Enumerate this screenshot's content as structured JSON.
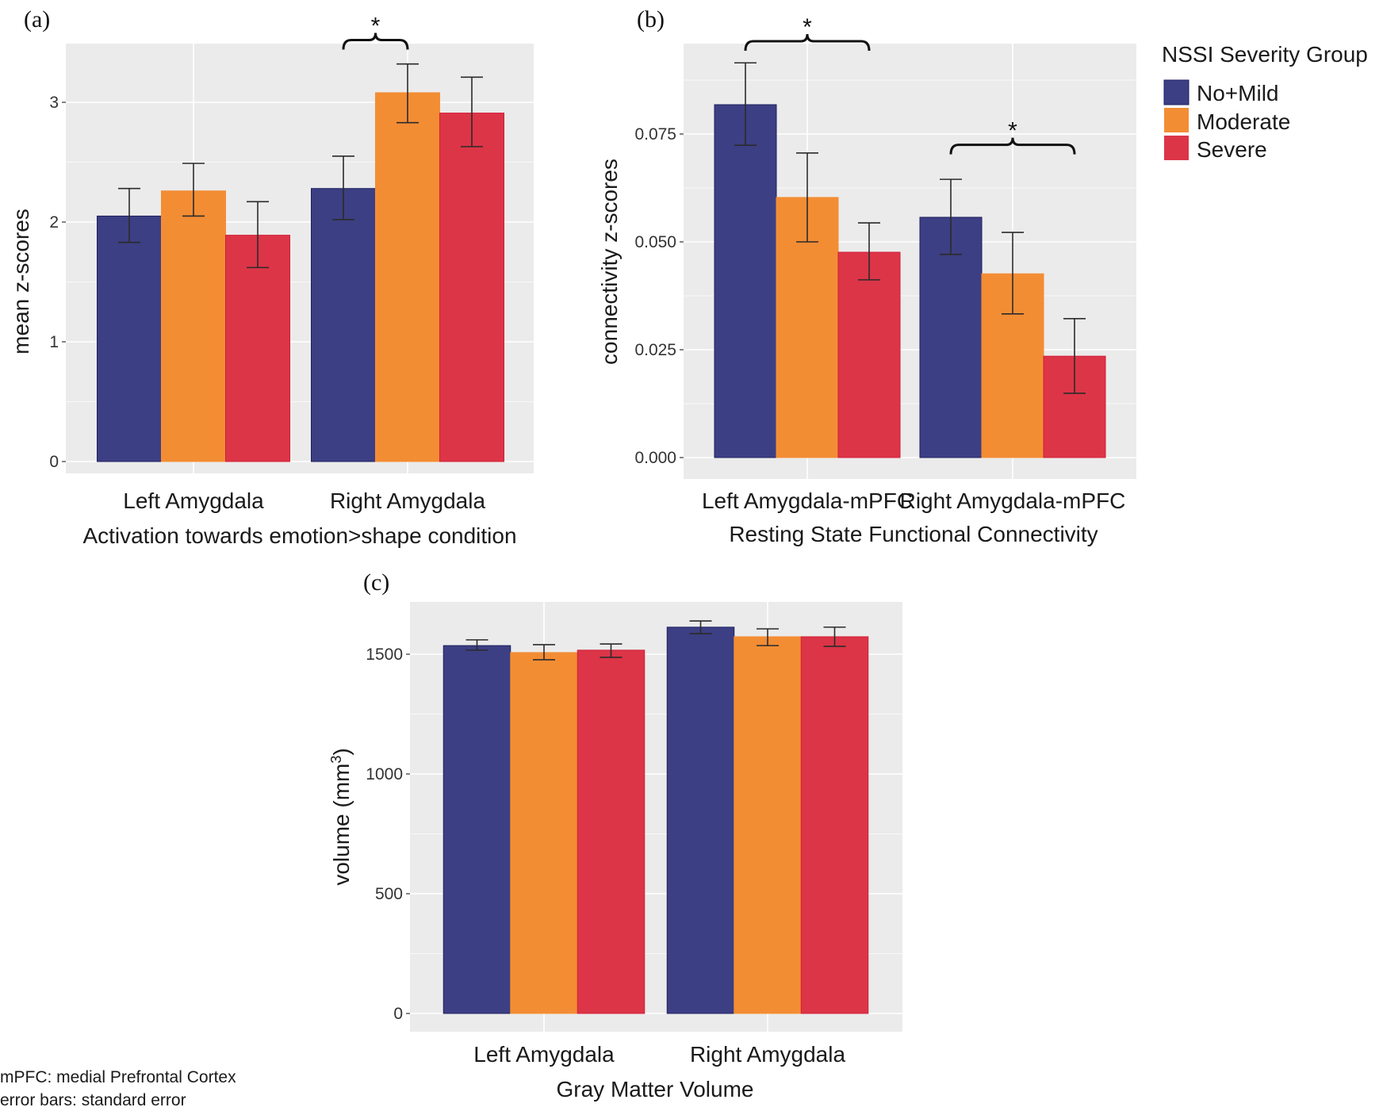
{
  "legend": {
    "title": "NSSI Severity Group",
    "items": [
      {
        "label": "No+Mild",
        "color": "#3C3F83"
      },
      {
        "label": "Moderate",
        "color": "#F38D34"
      },
      {
        "label": "Severe",
        "color": "#DC3547"
      }
    ]
  },
  "footnotes": [
    "mPFC: medial Prefrontal Cortex",
    "error bars: standard error"
  ],
  "chart_data": [
    {
      "panel": "(a)",
      "type": "bar",
      "title": "",
      "xlabel": "Activation towards emotion>shape condition",
      "ylabel": "mean z-scores",
      "categories": [
        "Left Amygdala",
        "Right Amygdala"
      ],
      "ylim": [
        -0.1,
        3.4
      ],
      "yticks": [
        0,
        1,
        2,
        3
      ],
      "ytick_labels": [
        "0",
        "1",
        "2",
        "3"
      ],
      "grid": true,
      "series": [
        {
          "name": "No+Mild",
          "values": [
            2.05,
            2.28
          ],
          "err_low": [
            1.83,
            2.02
          ],
          "err_high": [
            2.28,
            2.55
          ]
        },
        {
          "name": "Moderate",
          "values": [
            2.26,
            3.08
          ],
          "err_low": [
            2.05,
            2.83
          ],
          "err_high": [
            2.49,
            3.32
          ]
        },
        {
          "name": "Severe",
          "values": [
            1.89,
            2.91
          ],
          "err_low": [
            1.62,
            2.63
          ],
          "err_high": [
            2.17,
            3.21
          ]
        }
      ],
      "annotations": [
        {
          "text": "*",
          "category": 1,
          "from_series": 0,
          "to_series": 1,
          "y": 3.52
        }
      ]
    },
    {
      "panel": "(b)",
      "type": "bar",
      "title": "",
      "xlabel": "Resting State Functional Connectivity",
      "ylabel": "connectivity  z-scores",
      "categories": [
        "Left Amygdala-mPFC",
        "Right Amygdala-mPFC"
      ],
      "ylim": [
        -0.005,
        0.095
      ],
      "yticks": [
        0.0,
        0.025,
        0.05,
        0.075
      ],
      "ytick_labels": [
        "0.000",
        "0.025",
        "0.050",
        "0.075"
      ],
      "grid": true,
      "series": [
        {
          "name": "No+Mild",
          "values": [
            0.0818,
            0.0557
          ],
          "err_low": [
            0.0724,
            0.0471
          ],
          "err_high": [
            0.0915,
            0.0645
          ]
        },
        {
          "name": "Moderate",
          "values": [
            0.0603,
            0.0426
          ],
          "err_low": [
            0.05,
            0.0333
          ],
          "err_high": [
            0.0706,
            0.0522
          ]
        },
        {
          "name": "Severe",
          "values": [
            0.0476,
            0.0235
          ],
          "err_low": [
            0.0412,
            0.0149
          ],
          "err_high": [
            0.0544,
            0.0322
          ]
        }
      ],
      "annotations": [
        {
          "text": "*",
          "category": 0,
          "from_series": 0,
          "to_series": 2,
          "y": 0.0965
        },
        {
          "text": "*",
          "category": 1,
          "from_series": 0,
          "to_series": 2,
          "y": 0.0725
        }
      ]
    },
    {
      "panel": "(c)",
      "type": "bar",
      "title": "",
      "xlabel": "Gray Matter Volume",
      "ylabel": "volume (mm³)",
      "ylabel_base": "volume (mm",
      "ylabel_sup": "3",
      "ylabel_end": ")",
      "categories": [
        "Left Amygdala",
        "Right Amygdala"
      ],
      "ylim": [
        -75,
        1725
      ],
      "yticks": [
        0,
        500,
        1000,
        1500
      ],
      "ytick_labels": [
        "0",
        "500",
        "1000",
        "1500"
      ],
      "grid": true,
      "series": [
        {
          "name": "No+Mild",
          "values": [
            1536,
            1613
          ],
          "err_low": [
            1517,
            1586
          ],
          "err_high": [
            1560,
            1639
          ]
        },
        {
          "name": "Moderate",
          "values": [
            1507,
            1573
          ],
          "err_low": [
            1477,
            1536
          ],
          "err_high": [
            1540,
            1606
          ]
        },
        {
          "name": "Severe",
          "values": [
            1517,
            1573
          ],
          "err_low": [
            1487,
            1533
          ],
          "err_high": [
            1543,
            1613
          ]
        }
      ],
      "annotations": []
    }
  ]
}
